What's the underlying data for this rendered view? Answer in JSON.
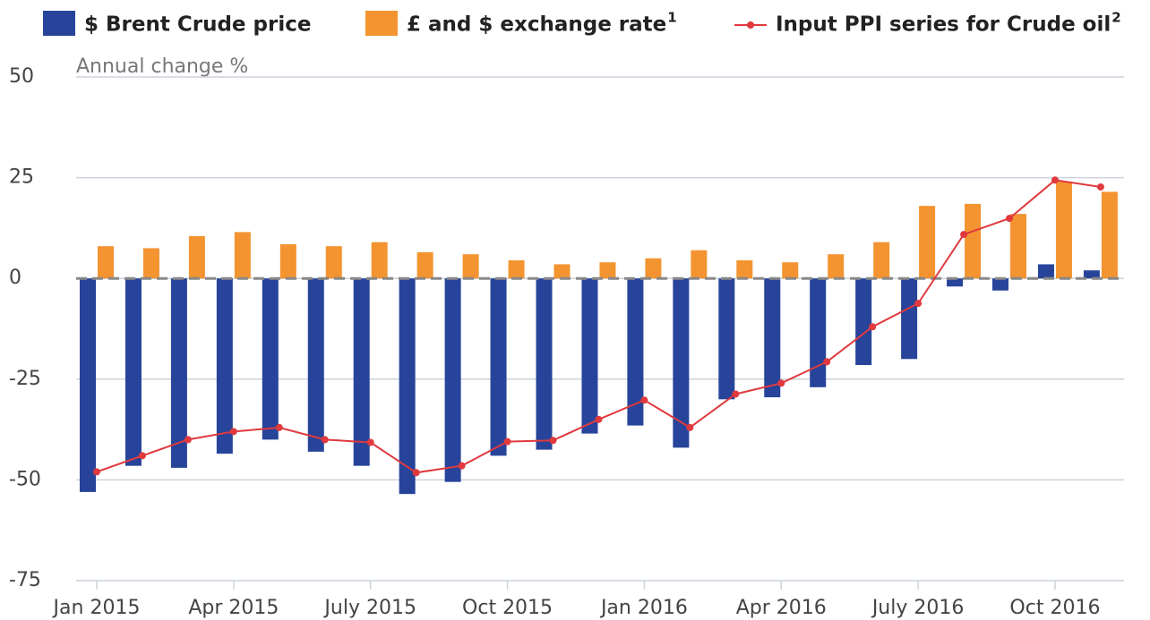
{
  "chart_data": {
    "type": "bar_line",
    "subtitle": "Annual change %",
    "categories": [
      "Jan 2015",
      null,
      null,
      "Apr 2015",
      null,
      null,
      "July 2015",
      null,
      null,
      "Oct 2015",
      null,
      null,
      "Jan 2016",
      null,
      null,
      "Apr 2016",
      null,
      null,
      "July 2016",
      null,
      null,
      "Oct 2016",
      null
    ],
    "series": [
      {
        "name": "$ Brent Crude price",
        "type": "bar",
        "color": "#27449a",
        "values": [
          -53,
          -46.5,
          -47,
          -43.5,
          -40,
          -43,
          -46.5,
          -53.5,
          -50.5,
          -44,
          -42.5,
          -38.5,
          -36.5,
          -42,
          -30,
          -29.5,
          -27,
          -21.5,
          -20,
          -2,
          -3,
          3.5,
          2
        ]
      },
      {
        "name": "£ and $ exchange rate",
        "name_sup": "1",
        "type": "bar",
        "color": "#f39431",
        "values": [
          8,
          7.5,
          10.5,
          11.5,
          8.5,
          8,
          9,
          6.5,
          6,
          4.5,
          3.5,
          4,
          5,
          7,
          4.5,
          4,
          6,
          9,
          18,
          18.5,
          16,
          24,
          21.5
        ]
      },
      {
        "name": "Input PPI series for Crude oil",
        "name_sup": "2",
        "type": "line",
        "color": "#e0393e",
        "values": [
          -48,
          -44,
          -40,
          -38,
          -37,
          -40,
          -40.7,
          -48.2,
          -46.5,
          -40.5,
          -40.2,
          -35,
          -30.2,
          -37,
          -28.7,
          -26,
          -20.7,
          -12,
          -6.2,
          10.9,
          14.9,
          24.4,
          22.7
        ]
      }
    ],
    "ylim": [
      -75,
      50
    ],
    "yticks": [
      -75,
      -50,
      -25,
      0,
      25,
      50
    ],
    "grid": true
  }
}
